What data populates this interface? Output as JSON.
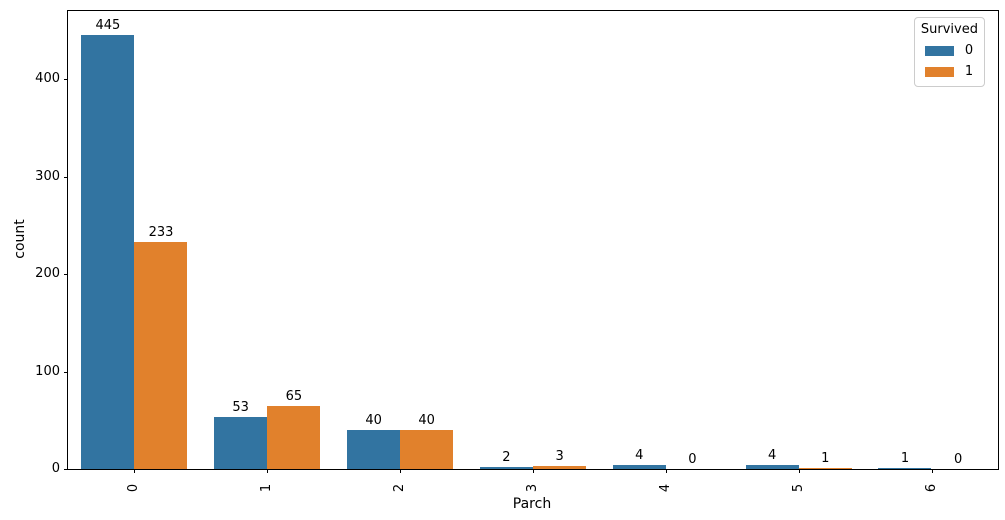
{
  "chart_data": {
    "type": "bar",
    "title": "",
    "xlabel": "Parch",
    "ylabel": "count",
    "categories": [
      "0",
      "1",
      "2",
      "3",
      "4",
      "5",
      "6"
    ],
    "series": [
      {
        "name": "0",
        "color": "#3274a1",
        "values": [
          445,
          53,
          40,
          2,
          4,
          4,
          1
        ]
      },
      {
        "name": "1",
        "color": "#e1812c",
        "values": [
          233,
          65,
          40,
          3,
          0,
          1,
          0
        ]
      }
    ],
    "bar_labels": [
      [
        "445",
        "53",
        "40",
        "2",
        "4",
        "4",
        "1"
      ],
      [
        "233",
        "65",
        "40",
        "3",
        "0",
        "1",
        "0"
      ]
    ],
    "legend_title": "Survived",
    "legend_position": "upper right",
    "yticks": [
      "0",
      "100",
      "200",
      "300",
      "400"
    ],
    "ylim": [
      0,
      470
    ],
    "grid": false,
    "bar_group_width_ratio": 0.8
  }
}
